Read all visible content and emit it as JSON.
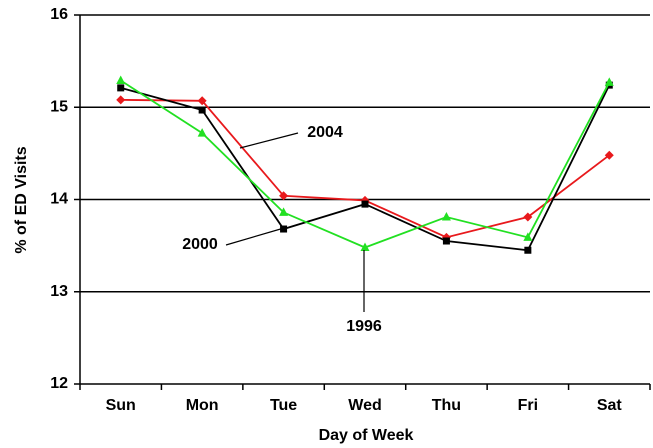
{
  "chart_data": {
    "type": "line",
    "x_label": "Day of Week",
    "y_label": "% of ED Visits",
    "categories": [
      "Sun",
      "Mon",
      "Tue",
      "Wed",
      "Thu",
      "Fri",
      "Sat"
    ],
    "series": [
      {
        "name": "2004",
        "color": "#e8191c",
        "marker": "diamond",
        "values": [
          15.08,
          15.07,
          14.04,
          13.99,
          13.59,
          13.81,
          14.48
        ]
      },
      {
        "name": "2000",
        "color": "#000000",
        "marker": "square",
        "values": [
          15.21,
          14.97,
          13.68,
          13.95,
          13.55,
          13.45,
          15.24
        ]
      },
      {
        "name": "1996",
        "color": "#22e022",
        "marker": "triangle",
        "values": [
          15.29,
          14.72,
          13.86,
          13.48,
          13.81,
          13.59,
          15.27
        ]
      }
    ],
    "ylim": [
      12,
      16
    ],
    "yticks": [
      12,
      13,
      14,
      15,
      16
    ],
    "grid": true
  }
}
